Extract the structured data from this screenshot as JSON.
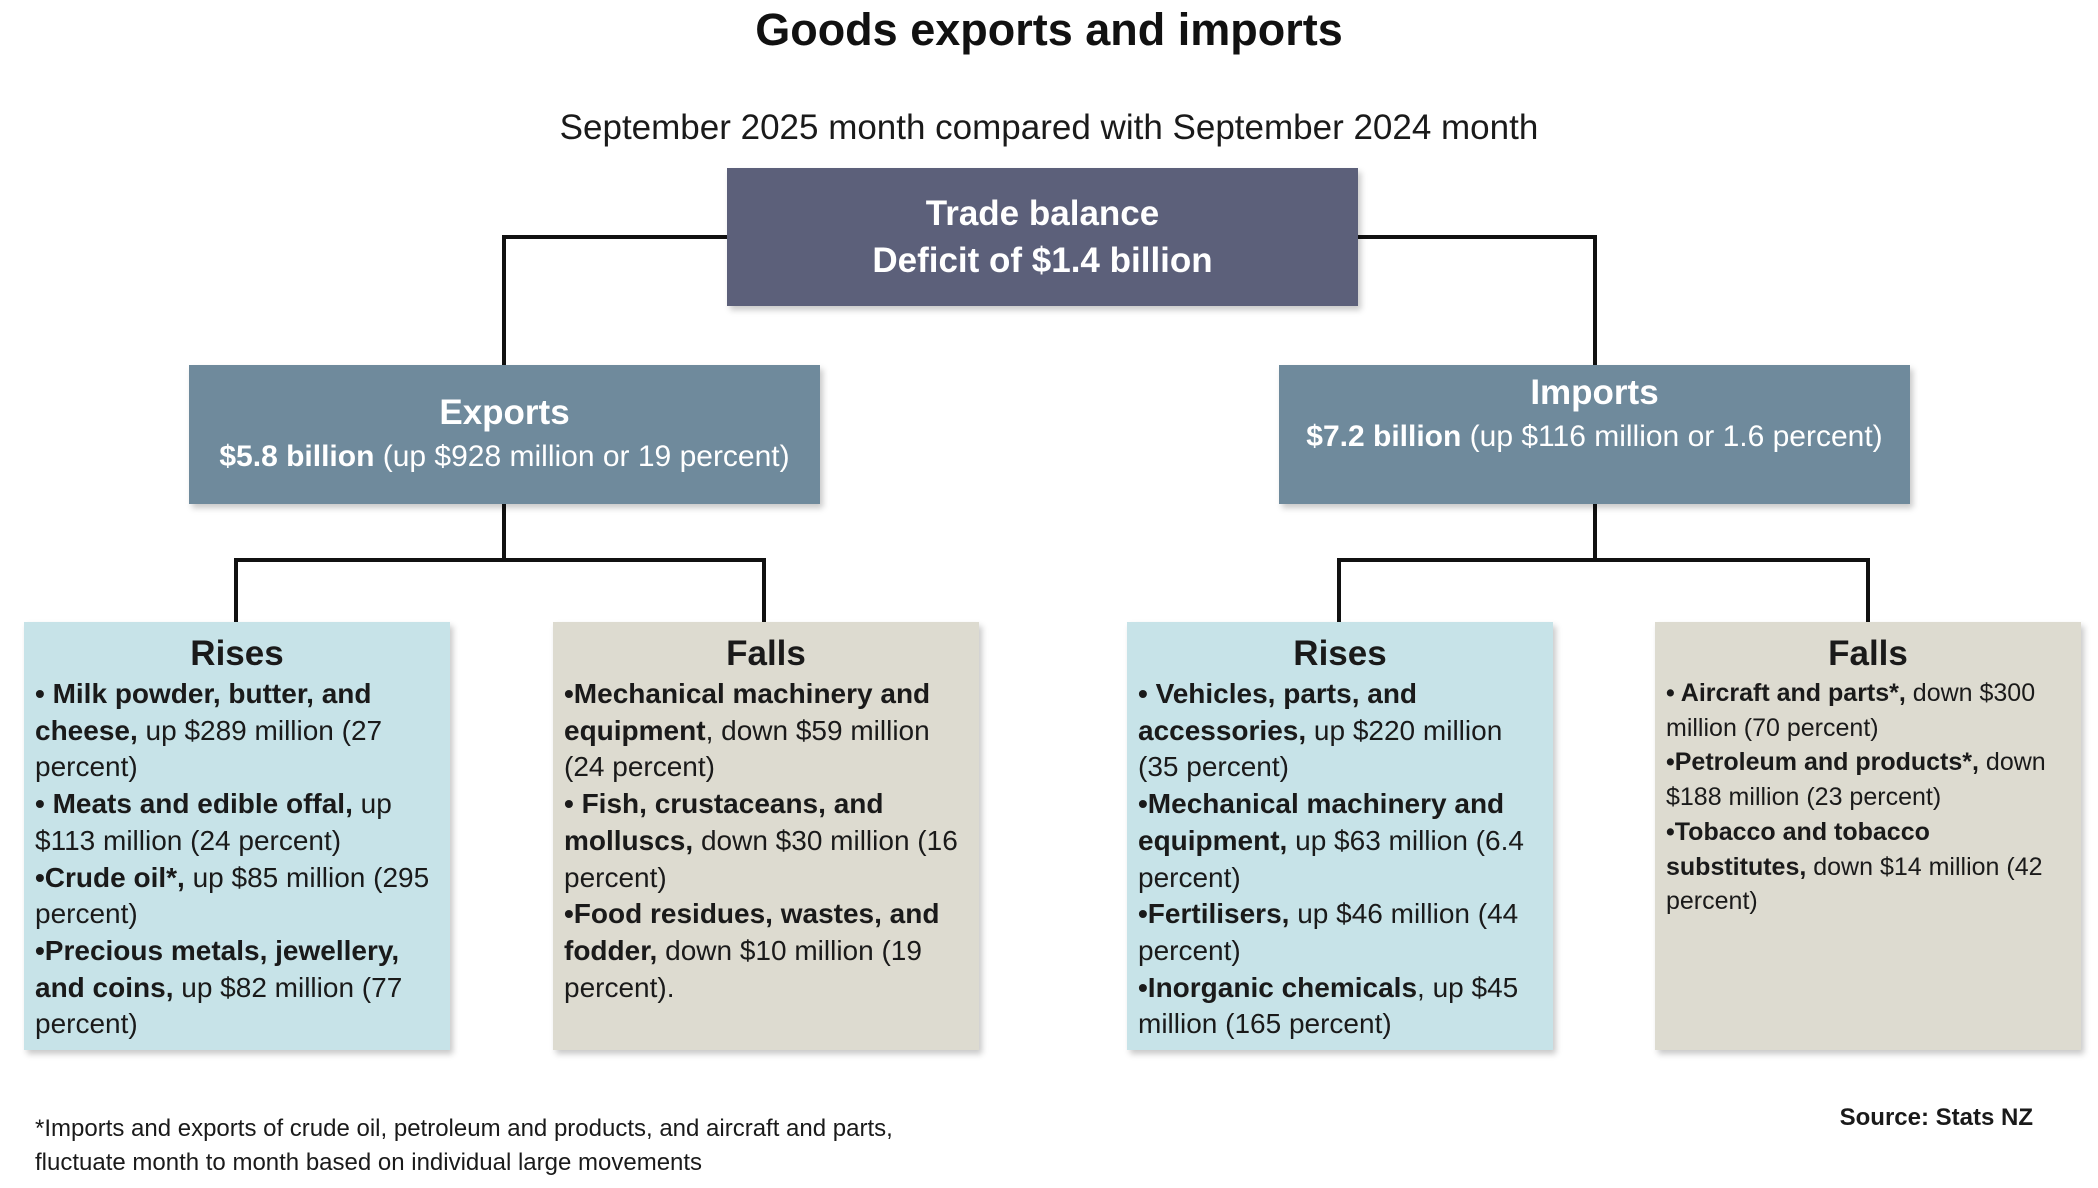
{
  "title": "Goods exports and imports",
  "subtitle": "September 2025 month compared with September 2024 month",
  "trade_balance": {
    "heading": "Trade balance",
    "value": "Deficit of $1.4 billion"
  },
  "exports": {
    "heading": "Exports",
    "amount": "$5.8 billion",
    "change": " (up $928 million or 19 percent)",
    "rises": {
      "heading": "Rises",
      "items": [
        {
          "name": "• Milk powder, butter, and cheese,",
          "detail": " up $289 million (27 percent)"
        },
        {
          "name": "• Meats and edible offal,",
          "detail": " up $113 million (24 percent)"
        },
        {
          "name": "•Crude oil*,",
          "detail": " up $85 million (295 percent)"
        },
        {
          "name": "•Precious metals, jewellery, and coins,",
          "detail": " up $82 million (77 percent)"
        }
      ]
    },
    "falls": {
      "heading": "Falls",
      "items": [
        {
          "name": "•Mechanical machinery and equipment",
          "detail": ", down $59 million (24 percent)"
        },
        {
          "name": "• Fish, crustaceans, and molluscs,",
          "detail": " down $30 million (16 percent)"
        },
        {
          "name": "•Food residues, wastes, and fodder,",
          "detail": " down $10 million (19 percent)."
        }
      ]
    }
  },
  "imports": {
    "heading": "Imports",
    "amount": "$7.2 billion",
    "change": " (up $116 million or 1.6 percent)",
    "rises": {
      "heading": "Rises",
      "items": [
        {
          "name": "• Vehicles, parts, and accessories,",
          "detail": " up $220 million (35 percent)"
        },
        {
          "name": "•Mechanical machinery and equipment,",
          "detail": " up $63 million (6.4 percent)"
        },
        {
          "name": "•Fertilisers,",
          "detail": " up $46 million (44 percent)"
        },
        {
          "name": "•Inorganic chemicals",
          "detail": ", up $45 million (165 percent)"
        }
      ]
    },
    "falls": {
      "heading": "Falls",
      "items": [
        {
          "name": "• Aircraft and parts*,",
          "detail": " down $300 million (70 percent)"
        },
        {
          "name": "•Petroleum and products*,",
          "detail": " down $188 million (23 percent)"
        },
        {
          "name": "•Tobacco and tobacco substitutes,",
          "detail": " down $14 million (42 percent)"
        }
      ]
    }
  },
  "footnote": {
    "line1": "*Imports and exports of crude oil, petroleum and products, and aircraft and parts,",
    "line2": "fluctuate month to month based on individual large movements"
  },
  "source": "Source: Stats NZ",
  "colors": {
    "trade_balance_box": "#5c607a",
    "category_box": "#6f8a9c",
    "rises_box": "#c7e3e8",
    "falls_box": "#dddbd0",
    "connector": "#111111"
  }
}
